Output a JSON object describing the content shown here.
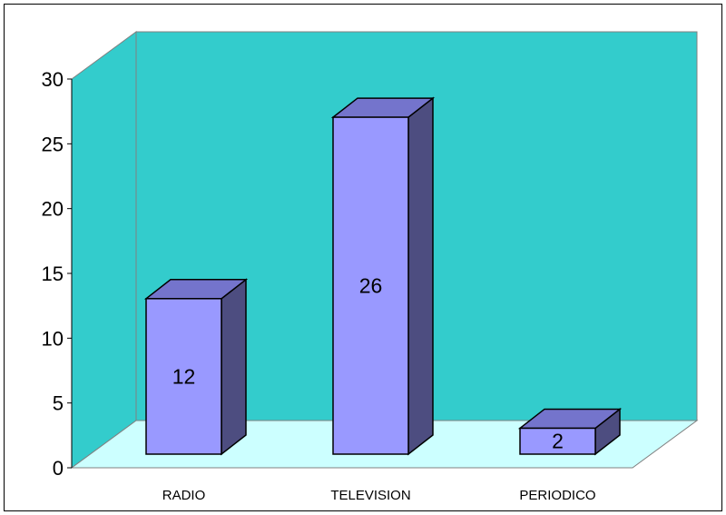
{
  "chart_data": {
    "type": "bar",
    "categories": [
      "RADIO",
      "TELEVISION",
      "PERIODICO"
    ],
    "values": [
      12,
      26,
      2
    ],
    "data_labels": [
      "12",
      "26",
      "2"
    ],
    "ylim": [
      0,
      30
    ],
    "yticks": [
      "0",
      "5",
      "10",
      "15",
      "20",
      "25",
      "30"
    ],
    "grid": false,
    "legend": "none",
    "style": "3d",
    "colors": {
      "wall": "#33CCCC",
      "floor": "#CCFFFF",
      "bar_front": "#9999FF",
      "bar_top": "#7474CC",
      "bar_side": "#4D4D80"
    }
  }
}
